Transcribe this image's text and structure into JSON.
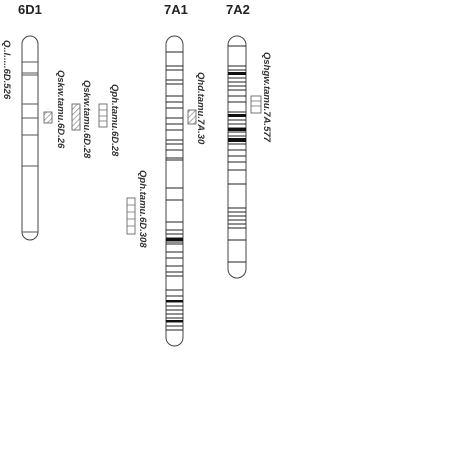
{
  "chromosomes": [
    {
      "id": "6D1",
      "title": "6D1"
    },
    {
      "id": "7A1",
      "title": "7A1"
    },
    {
      "id": "7A2",
      "title": "7A2"
    }
  ],
  "qtls": [
    {
      "id": "qskw-6d26",
      "label": "Qskw.tamu.6D.26",
      "pattern": "hatch"
    },
    {
      "id": "qskw-6d28",
      "label": "Qskw.tamu.6D.28",
      "pattern": "hatch"
    },
    {
      "id": "qph-6d28",
      "label": "Qph.tamu.6D.28",
      "pattern": "plain"
    },
    {
      "id": "qph-6d308",
      "label": "Qph.tamu.6D.308",
      "pattern": "plain"
    },
    {
      "id": "qhd-7a30",
      "label": "Qhd.tamu.7A.30",
      "pattern": "hatch"
    },
    {
      "id": "qshgw-7a577",
      "label": "Qshgw.tamu.7A.577",
      "pattern": "plain"
    }
  ],
  "clipped_text": "Q..l.....6D.526"
}
